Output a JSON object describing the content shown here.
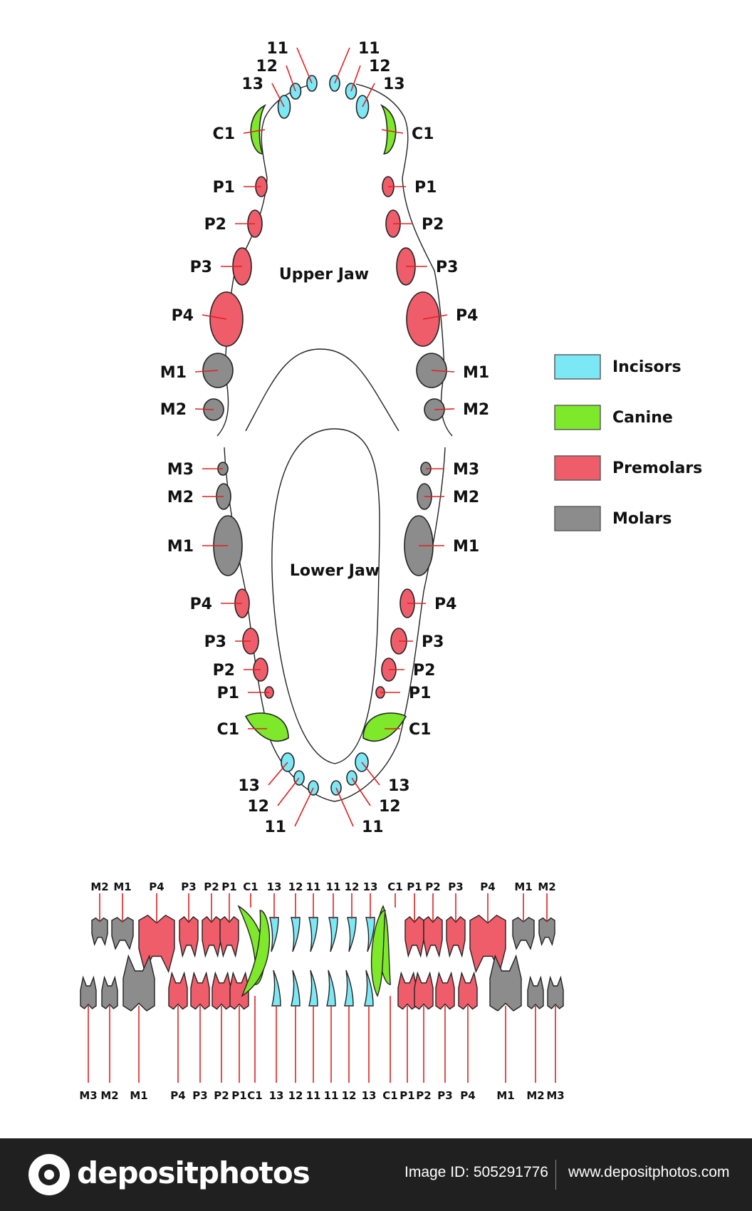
{
  "labels": {
    "upper_jaw": "Upper Jaw",
    "lower_jaw": "Lower Jaw"
  },
  "legend": [
    {
      "label": "Incisors",
      "color": "#7de8f5"
    },
    {
      "label": "Canine",
      "color": "#7ee82a"
    },
    {
      "label": "Premolars",
      "color": "#ef5d6a"
    },
    {
      "label": "Molars",
      "color": "#8c8c8c"
    }
  ],
  "colors": {
    "incisor": "#7de8f5",
    "canine": "#7ee82a",
    "premolar": "#ef5d6a",
    "molar": "#8c8c8c",
    "leader_line": "#e02020",
    "outline": "#222222"
  },
  "upper_arch_left": [
    {
      "label": "11",
      "type": "incisor"
    },
    {
      "label": "12",
      "type": "incisor"
    },
    {
      "label": "13",
      "type": "incisor"
    },
    {
      "label": "C1",
      "type": "canine"
    },
    {
      "label": "P1",
      "type": "premolar"
    },
    {
      "label": "P2",
      "type": "premolar"
    },
    {
      "label": "P3",
      "type": "premolar"
    },
    {
      "label": "P4",
      "type": "premolar"
    },
    {
      "label": "M1",
      "type": "molar"
    },
    {
      "label": "M2",
      "type": "molar"
    }
  ],
  "upper_arch_right": [
    {
      "label": "11",
      "type": "incisor"
    },
    {
      "label": "12",
      "type": "incisor"
    },
    {
      "label": "13",
      "type": "incisor"
    },
    {
      "label": "C1",
      "type": "canine"
    },
    {
      "label": "P1",
      "type": "premolar"
    },
    {
      "label": "P2",
      "type": "premolar"
    },
    {
      "label": "P3",
      "type": "premolar"
    },
    {
      "label": "P4",
      "type": "premolar"
    },
    {
      "label": "M1",
      "type": "molar"
    },
    {
      "label": "M2",
      "type": "molar"
    }
  ],
  "lower_arch_left": [
    {
      "label": "M3",
      "type": "molar"
    },
    {
      "label": "M2",
      "type": "molar"
    },
    {
      "label": "M1",
      "type": "molar"
    },
    {
      "label": "P4",
      "type": "premolar"
    },
    {
      "label": "P3",
      "type": "premolar"
    },
    {
      "label": "P2",
      "type": "premolar"
    },
    {
      "label": "P1",
      "type": "premolar"
    },
    {
      "label": "C1",
      "type": "canine"
    },
    {
      "label": "13",
      "type": "incisor"
    },
    {
      "label": "12",
      "type": "incisor"
    },
    {
      "label": "11",
      "type": "incisor"
    }
  ],
  "lower_arch_right": [
    {
      "label": "M3",
      "type": "molar"
    },
    {
      "label": "M2",
      "type": "molar"
    },
    {
      "label": "M1",
      "type": "molar"
    },
    {
      "label": "P4",
      "type": "premolar"
    },
    {
      "label": "P3",
      "type": "premolar"
    },
    {
      "label": "P2",
      "type": "premolar"
    },
    {
      "label": "P1",
      "type": "premolar"
    },
    {
      "label": "C1",
      "type": "canine"
    },
    {
      "label": "13",
      "type": "incisor"
    },
    {
      "label": "12",
      "type": "incisor"
    },
    {
      "label": "11",
      "type": "incisor"
    }
  ],
  "side_upper_row": [
    {
      "label": "M2",
      "type": "molar"
    },
    {
      "label": "M1",
      "type": "molar"
    },
    {
      "label": "P4",
      "type": "premolar"
    },
    {
      "label": "P3",
      "type": "premolar"
    },
    {
      "label": "P2",
      "type": "premolar"
    },
    {
      "label": "P1",
      "type": "premolar"
    },
    {
      "label": "C1",
      "type": "canine"
    },
    {
      "label": "13",
      "type": "incisor"
    },
    {
      "label": "12",
      "type": "incisor"
    },
    {
      "label": "11",
      "type": "incisor"
    },
    {
      "label": "11",
      "type": "incisor"
    },
    {
      "label": "12",
      "type": "incisor"
    },
    {
      "label": "13",
      "type": "incisor"
    },
    {
      "label": "C1",
      "type": "canine"
    },
    {
      "label": "P1",
      "type": "premolar"
    },
    {
      "label": "P2",
      "type": "premolar"
    },
    {
      "label": "P3",
      "type": "premolar"
    },
    {
      "label": "P4",
      "type": "premolar"
    },
    {
      "label": "M1",
      "type": "molar"
    },
    {
      "label": "M2",
      "type": "molar"
    }
  ],
  "side_lower_row": [
    {
      "label": "M3",
      "type": "molar"
    },
    {
      "label": "M2",
      "type": "molar"
    },
    {
      "label": "M1",
      "type": "molar"
    },
    {
      "label": "P4",
      "type": "premolar"
    },
    {
      "label": "P3",
      "type": "premolar"
    },
    {
      "label": "P2",
      "type": "premolar"
    },
    {
      "label": "P1",
      "type": "premolar"
    },
    {
      "label": "C1",
      "type": "canine"
    },
    {
      "label": "13",
      "type": "incisor"
    },
    {
      "label": "12",
      "type": "incisor"
    },
    {
      "label": "11",
      "type": "incisor"
    },
    {
      "label": "11",
      "type": "incisor"
    },
    {
      "label": "12",
      "type": "incisor"
    },
    {
      "label": "13",
      "type": "incisor"
    },
    {
      "label": "C1",
      "type": "canine"
    },
    {
      "label": "P1",
      "type": "premolar"
    },
    {
      "label": "P2",
      "type": "premolar"
    },
    {
      "label": "P3",
      "type": "premolar"
    },
    {
      "label": "P4",
      "type": "premolar"
    },
    {
      "label": "M1",
      "type": "molar"
    },
    {
      "label": "M2",
      "type": "molar"
    },
    {
      "label": "M3",
      "type": "molar"
    }
  ],
  "footer": {
    "logo": "depositphotos",
    "image_id": "Image ID: 505291776",
    "site": "www.depositphotos.com"
  }
}
